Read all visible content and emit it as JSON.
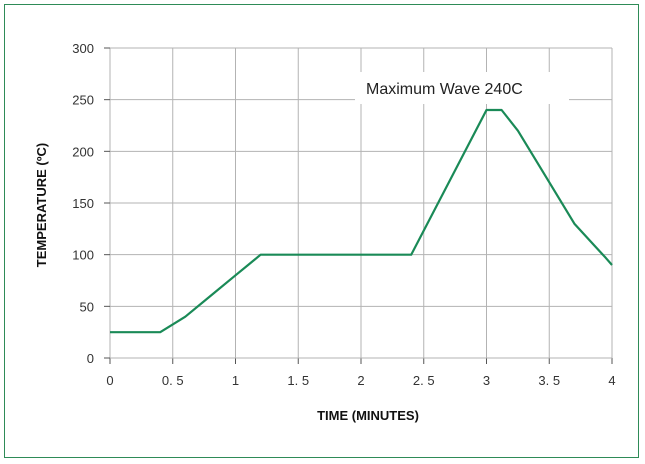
{
  "chart_data": {
    "type": "line",
    "title": "",
    "xlabel": "TIME (MINUTES)",
    "ylabel": "TEMPERATURE (ºC)",
    "xlim": [
      0,
      4
    ],
    "ylim": [
      0,
      300
    ],
    "x_ticks": [
      "0",
      "0. 5",
      "1",
      "1. 5",
      "2",
      "2. 5",
      "3",
      "3. 5",
      "4"
    ],
    "y_ticks": [
      "0",
      "50",
      "100",
      "150",
      "200",
      "250",
      "300"
    ],
    "grid": true,
    "annotation": "Maximum Wave 240C",
    "series": [
      {
        "x": [
          0,
          0.4,
          0.6,
          0.8,
          1.0,
          1.1,
          1.2,
          2.4,
          3.0,
          3.12,
          3.25,
          3.5,
          3.7,
          3.85,
          3.95,
          4.0
        ],
        "y": [
          25,
          25,
          40,
          60,
          80,
          90,
          100,
          100,
          240,
          240,
          220,
          170,
          130,
          110,
          97,
          90
        ]
      }
    ]
  },
  "colors": {
    "line": "#1a8a57",
    "grid": "#b3b3b3",
    "frame": "#2e8b57"
  }
}
